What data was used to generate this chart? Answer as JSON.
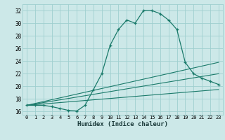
{
  "xlabel": "Humidex (Indice chaleur)",
  "bg_color": "#cce8e8",
  "grid_color": "#9fcfcf",
  "line_color": "#1a7a6a",
  "xlim": [
    -0.5,
    23.5
  ],
  "ylim": [
    15.5,
    33.0
  ],
  "ytick_values": [
    16,
    18,
    20,
    22,
    24,
    26,
    28,
    30,
    32
  ],
  "main_x": [
    0,
    1,
    2,
    3,
    4,
    5,
    6,
    7,
    8,
    9,
    10,
    11,
    12,
    13,
    14,
    15,
    16,
    17,
    18,
    19,
    20,
    21,
    22,
    23
  ],
  "main_y": [
    17.0,
    17.0,
    17.0,
    16.8,
    16.5,
    16.2,
    16.1,
    17.0,
    19.5,
    22.0,
    26.5,
    29.0,
    30.5,
    30.0,
    32.0,
    32.0,
    31.5,
    30.5,
    29.0,
    23.8,
    22.0,
    21.3,
    20.8,
    20.3
  ],
  "ref_lines": [
    {
      "x0": 0,
      "y0": 17.0,
      "x1": 23,
      "y1": 23.8
    },
    {
      "x0": 0,
      "y0": 17.0,
      "x1": 23,
      "y1": 22.0
    },
    {
      "x0": 0,
      "y0": 17.0,
      "x1": 23,
      "y1": 19.5
    }
  ]
}
